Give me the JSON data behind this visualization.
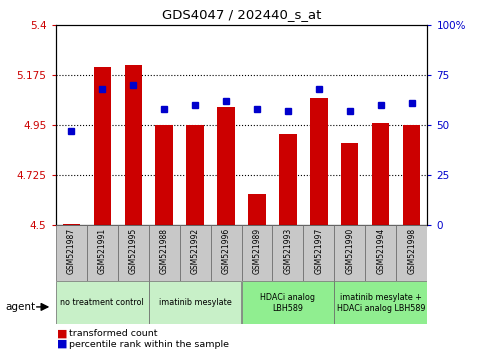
{
  "title": "GDS4047 / 202440_s_at",
  "samples": [
    "GSM521987",
    "GSM521991",
    "GSM521995",
    "GSM521988",
    "GSM521992",
    "GSM521996",
    "GSM521989",
    "GSM521993",
    "GSM521997",
    "GSM521990",
    "GSM521994",
    "GSM521998"
  ],
  "bar_values": [
    4.505,
    5.21,
    5.22,
    4.95,
    4.95,
    5.03,
    4.64,
    4.91,
    5.07,
    4.87,
    4.96,
    4.95
  ],
  "percentile_values": [
    47,
    68,
    70,
    58,
    60,
    62,
    58,
    57,
    68,
    57,
    60,
    61
  ],
  "ymin": 4.5,
  "ymax": 5.4,
  "yticks": [
    4.5,
    4.725,
    4.95,
    5.175,
    5.4
  ],
  "ytick_labels": [
    "4.5",
    "4.725",
    "4.95",
    "5.175",
    "5.4"
  ],
  "right_yticks": [
    0,
    25,
    50,
    75,
    100
  ],
  "right_ytick_labels": [
    "0",
    "25",
    "50",
    "75",
    "100%"
  ],
  "bar_color": "#cc0000",
  "dot_color": "#0000cc",
  "sample_bg_color": "#c8c8c8",
  "group_defs": [
    {
      "start": 0,
      "end": 2,
      "color": "#c8f0c8",
      "label": "no treatment control"
    },
    {
      "start": 3,
      "end": 5,
      "color": "#c8f0c8",
      "label": "imatinib mesylate"
    },
    {
      "start": 6,
      "end": 8,
      "color": "#90ee90",
      "label": "HDACi analog\nLBH589"
    },
    {
      "start": 9,
      "end": 11,
      "color": "#90ee90",
      "label": "imatinib mesylate +\nHDACi analog LBH589"
    }
  ],
  "agent_label": "agent",
  "legend_bar_label": "transformed count",
  "legend_dot_label": "percentile rank within the sample",
  "tick_color_left": "#cc0000",
  "tick_color_right": "#0000cc"
}
